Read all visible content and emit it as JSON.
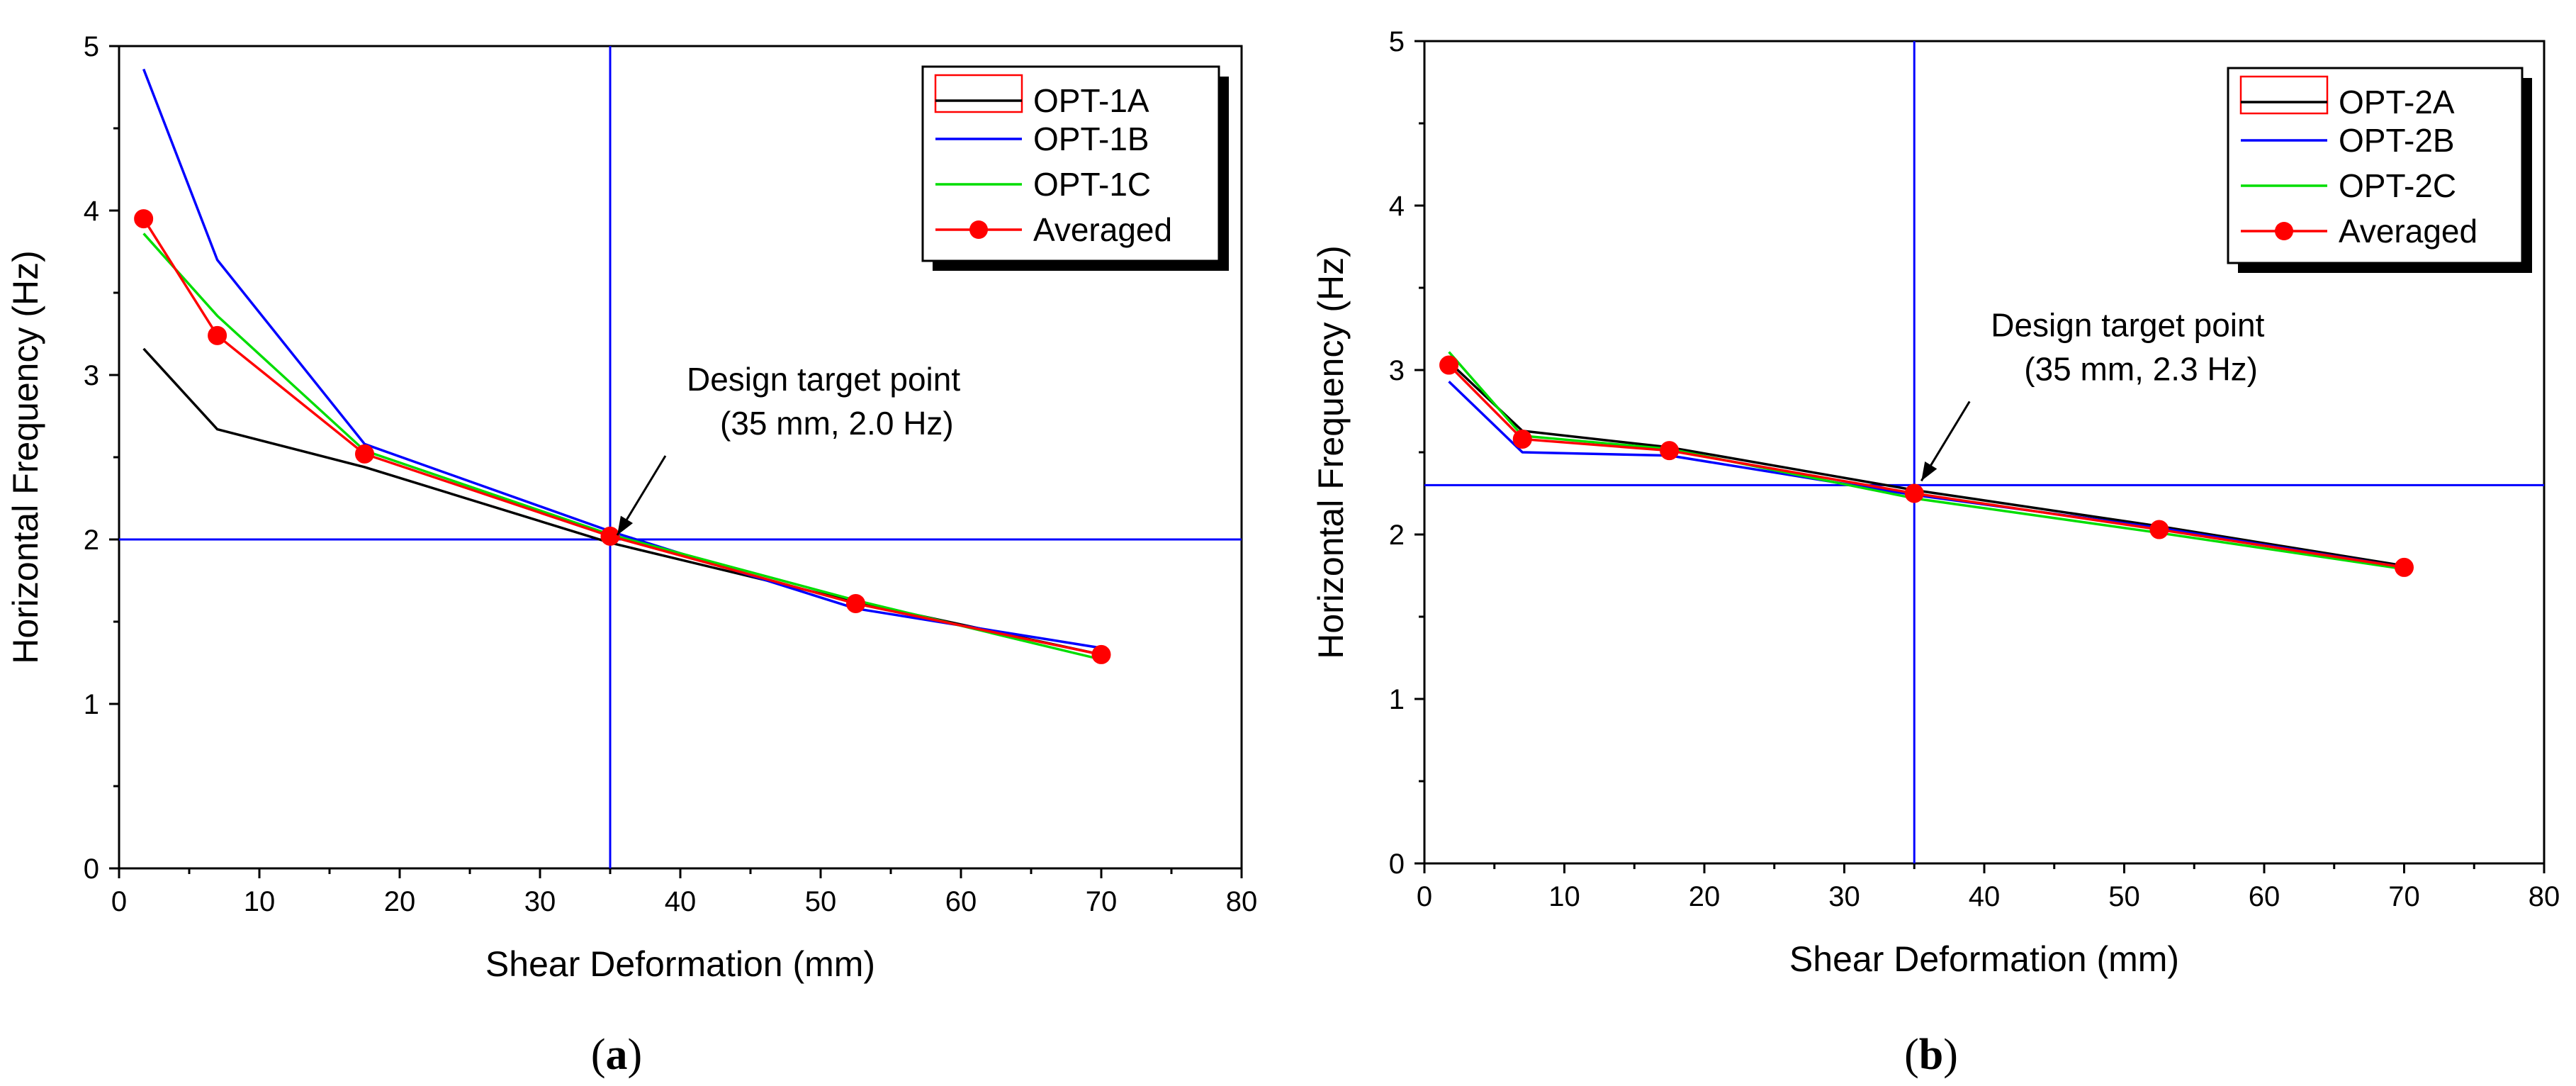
{
  "chart_data": [
    {
      "type": "line",
      "panel_label": "a",
      "xlabel": "Shear Deformation (mm)",
      "ylabel": "Horizontal Frequency (Hz)",
      "xlim": [
        0,
        80
      ],
      "ylim": [
        0,
        5
      ],
      "xticks": [
        "0",
        "10",
        "20",
        "30",
        "40",
        "50",
        "60",
        "70",
        "80"
      ],
      "yticks": [
        "0",
        "1",
        "2",
        "3",
        "4",
        "5"
      ],
      "x": [
        1.75,
        7,
        17.5,
        35,
        52.5,
        70
      ],
      "series": [
        {
          "name": "OPT-1A",
          "color": "#000000",
          "values": [
            3.16,
            2.67,
            2.44,
            1.98,
            1.62,
            1.3
          ]
        },
        {
          "name": "OPT-1B",
          "color": "#0000ff",
          "values": [
            4.86,
            3.7,
            2.58,
            2.05,
            1.58,
            1.34
          ]
        },
        {
          "name": "OPT-1C",
          "color": "#00dd00",
          "values": [
            3.86,
            3.36,
            2.54,
            2.03,
            1.63,
            1.27
          ]
        },
        {
          "name": "Averaged",
          "color": "#ff0000",
          "marker": "circle",
          "values": [
            3.95,
            3.24,
            2.52,
            2.02,
            1.61,
            1.3
          ]
        }
      ],
      "legend_header_sample": "OPT-1A",
      "reference_lines": {
        "x": 35,
        "y": 2.0,
        "color": "#0000ff"
      },
      "annotation": {
        "line1": "Design target point",
        "line2": "(35 mm, 2.0 Hz)",
        "target": [
          35,
          2.0
        ]
      },
      "legend_position": "top-right"
    },
    {
      "type": "line",
      "panel_label": "b",
      "xlabel": "Shear Deformation (mm)",
      "ylabel": "Horizontal Frequency (Hz)",
      "xlim": [
        0,
        80
      ],
      "ylim": [
        0,
        5
      ],
      "xticks": [
        "0",
        "10",
        "20",
        "30",
        "40",
        "50",
        "60",
        "70",
        "80"
      ],
      "yticks": [
        "0",
        "1",
        "2",
        "3",
        "4",
        "5"
      ],
      "x": [
        1.75,
        7,
        17.5,
        35,
        52.5,
        70
      ],
      "series": [
        {
          "name": "OPT-2A",
          "color": "#000000",
          "values": [
            3.05,
            2.63,
            2.53,
            2.27,
            2.05,
            1.81
          ]
        },
        {
          "name": "OPT-2B",
          "color": "#0000ff",
          "values": [
            2.93,
            2.5,
            2.48,
            2.24,
            2.04,
            1.8
          ]
        },
        {
          "name": "OPT-2C",
          "color": "#00dd00",
          "values": [
            3.11,
            2.6,
            2.52,
            2.22,
            2.01,
            1.79
          ]
        },
        {
          "name": "Averaged",
          "color": "#ff0000",
          "marker": "circle",
          "values": [
            3.03,
            2.58,
            2.51,
            2.25,
            2.03,
            1.8
          ]
        }
      ],
      "legend_header_sample": "OPT-2A",
      "reference_lines": {
        "x": 35,
        "y": 2.3,
        "color": "#0000ff"
      },
      "annotation": {
        "line1": "Design target point",
        "line2": "(35 mm, 2.3 Hz)",
        "target": [
          35,
          2.3
        ]
      },
      "legend_position": "top-right"
    }
  ]
}
